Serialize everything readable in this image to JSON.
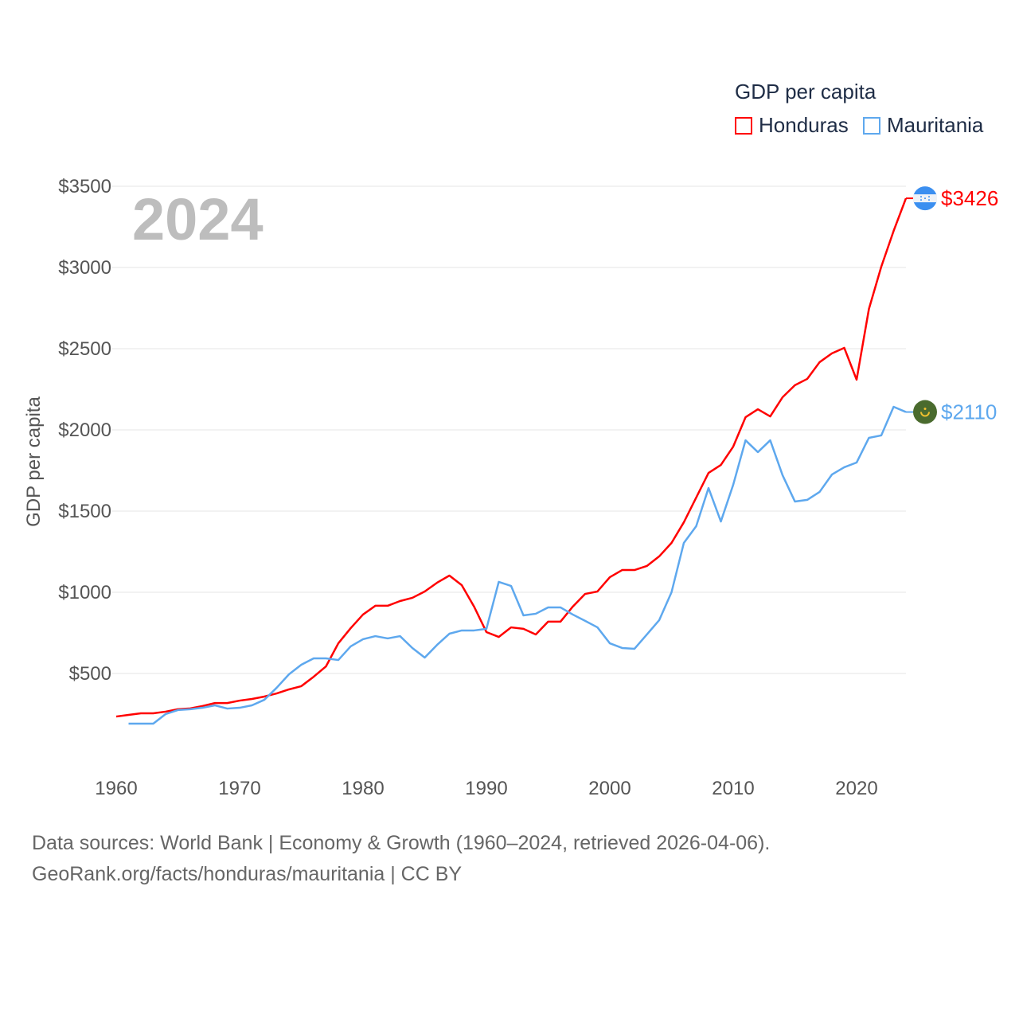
{
  "chart_data": {
    "type": "line",
    "title": "GDP per capita",
    "ylabel": "GDP per capita",
    "xlabel": "",
    "year_label": "2024",
    "xlim": [
      1960,
      2024
    ],
    "ylim": [
      0,
      3500
    ],
    "x_ticks": [
      1960,
      1970,
      1980,
      1990,
      2000,
      2010,
      2020
    ],
    "y_ticks": [
      500,
      1000,
      1500,
      2000,
      2500,
      3000,
      3500
    ],
    "y_tick_labels": [
      "$500",
      "$1000",
      "$1500",
      "$2000",
      "$2500",
      "$3000",
      "$3500"
    ],
    "grid": true,
    "legend_position": "top-right",
    "series": [
      {
        "name": "Honduras",
        "color": "#ff0000",
        "start_year": 1960,
        "end_label": "$3426",
        "flag": "honduras-flag",
        "values": [
          235,
          245,
          255,
          255,
          265,
          280,
          285,
          300,
          318,
          318,
          333,
          343,
          358,
          377,
          402,
          422,
          480,
          544,
          686,
          779,
          863,
          917,
          917,
          946,
          966,
          1005,
          1059,
          1103,
          1044,
          912,
          755,
          725,
          784,
          775,
          740,
          819,
          819,
          912,
          990,
          1005,
          1093,
          1137,
          1137,
          1162,
          1221,
          1304,
          1431,
          1583,
          1735,
          1784,
          1897,
          2078,
          2127,
          2083,
          2201,
          2275,
          2314,
          2417,
          2471,
          2505,
          2309,
          2745,
          3005,
          3225,
          3426
        ]
      },
      {
        "name": "Mauritania",
        "color": "#5ea8ee",
        "start_year": 1961,
        "end_label": "$2110",
        "flag": "mauritania-flag",
        "values": [
          191,
          191,
          191,
          250,
          275,
          280,
          289,
          304,
          284,
          289,
          304,
          338,
          412,
          495,
          554,
          593,
          593,
          583,
          667,
          711,
          730,
          716,
          730,
          657,
          598,
          676,
          745,
          765,
          765,
          775,
          1064,
          1039,
          858,
          868,
          907,
          907,
          863,
          824,
          784,
          686,
          657,
          652,
          740,
          828,
          1000,
          1304,
          1407,
          1642,
          1436,
          1662,
          1936,
          1863,
          1936,
          1721,
          1559,
          1569,
          1618,
          1725,
          1770,
          1799,
          1951,
          1966,
          2142,
          2110
        ]
      }
    ]
  },
  "footer": {
    "line1": "Data sources: World Bank | Economy & Growth (1960–2024, retrieved 2026-04-06).",
    "line2": "GeoRank.org/facts/honduras/mauritania | CC BY"
  }
}
